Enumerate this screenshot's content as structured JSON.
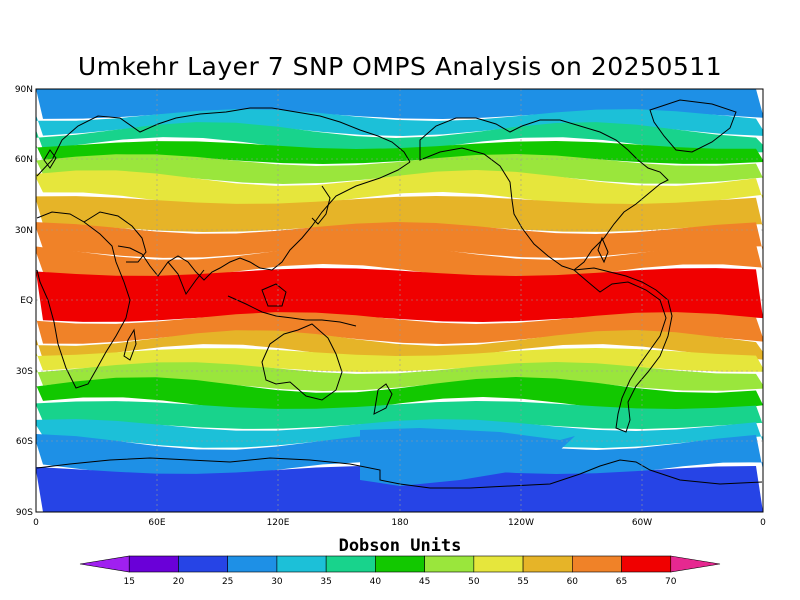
{
  "title": "Umkehr Layer 7 SNP OMPS Analysis on 20250511",
  "latitude_ticks": [
    "90N",
    "60N",
    "30N",
    "EQ",
    "30S",
    "60S",
    "90S"
  ],
  "longitude_ticks": [
    "0",
    "60E",
    "120E",
    "180",
    "120W",
    "60W",
    "0"
  ],
  "colorbar": {
    "label": "Dobson Units",
    "ticks": [
      "15",
      "20",
      "25",
      "30",
      "35",
      "40",
      "45",
      "50",
      "55",
      "60",
      "65",
      "70"
    ],
    "colors": [
      "#a020f0",
      "#6a00d8",
      "#2644e6",
      "#1e90e6",
      "#1cc0d8",
      "#18d38c",
      "#12c800",
      "#9ae63c",
      "#e6e63c",
      "#e6b428",
      "#f08228",
      "#f00000",
      "#e62890"
    ]
  },
  "map_colors": {
    "ocean_band_n": "#1ea0e6",
    "antarctic": "#2644e6",
    "grid": "#999999",
    "coast": "#000000"
  }
}
